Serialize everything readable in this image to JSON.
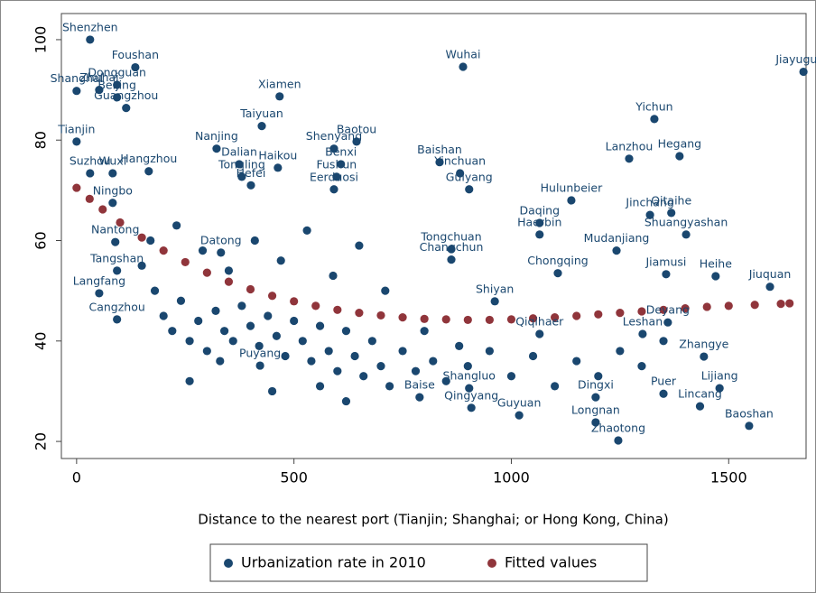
{
  "chart_data": {
    "type": "scatter",
    "x_label": "Distance to the nearest port (Tianjin; Shanghai; or Hong Kong, China)",
    "xlim": [
      -35,
      1678
    ],
    "ylim": [
      16.6,
      105.2
    ],
    "xticks": [
      0,
      500,
      1000,
      1500
    ],
    "yticks": [
      20,
      40,
      60,
      80,
      100
    ],
    "grid": false,
    "legend": "bottom",
    "series": [
      {
        "name": "Urbanization rate in 2010",
        "color": "#1a476f",
        "style": "points",
        "x": [
          31,
          135,
          0,
          93,
          52,
          93,
          114,
          0,
          467,
          426,
          322,
          166,
          374,
          380,
          463,
          644,
          592,
          608,
          598,
          592,
          889,
          835,
          882,
          903,
          1672,
          1329,
          1271,
          1387,
          1138,
          1368,
          1402,
          1065,
          1065,
          1242,
          862,
          862,
          1107,
          1356,
          1470,
          1595,
          962,
          93,
          52,
          93,
          89,
          31,
          83,
          83,
          332,
          401,
          422,
          789,
          903,
          908,
          1018,
          1194,
          1194,
          1246,
          1479,
          1434,
          1547,
          1350,
          1360,
          1302,
          1443,
          1065,
          1319,
          180,
          200,
          220,
          240,
          260,
          280,
          300,
          320,
          340,
          360,
          380,
          400,
          420,
          440,
          460,
          480,
          500,
          520,
          540,
          560,
          580,
          600,
          620,
          640,
          660,
          680,
          700,
          720,
          750,
          780,
          800,
          820,
          850,
          880,
          900,
          950,
          1000,
          1050,
          1100,
          1150,
          1200,
          1250,
          1300,
          1350,
          150,
          170,
          230,
          290,
          350,
          410,
          470,
          530,
          590,
          650,
          710,
          260,
          330,
          450,
          560,
          620
        ],
        "values": [
          100,
          94.5,
          89.8,
          91,
          90,
          88.5,
          86.4,
          79.7,
          88.7,
          82.8,
          78.3,
          73.8,
          75.2,
          72.7,
          74.5,
          79.7,
          78.3,
          75.2,
          72.7,
          70.2,
          94.6,
          75.6,
          73.4,
          70.2,
          93.6,
          84.2,
          76.3,
          76.8,
          68,
          65.5,
          61.2,
          63.5,
          61.2,
          58,
          58.3,
          56.2,
          53.5,
          53.3,
          52.9,
          50.8,
          47.9,
          44.3,
          49.5,
          54,
          59.7,
          73.4,
          73.4,
          67.5,
          57.6,
          71,
          35.1,
          28.8,
          30.6,
          26.7,
          25.2,
          28.8,
          23.8,
          20.2,
          30.6,
          27,
          23.1,
          29.5,
          43.7,
          41.4,
          36.9,
          41.4,
          65.1,
          50,
          45,
          42,
          48,
          40,
          44,
          38,
          46,
          42,
          40,
          47,
          43,
          39,
          45,
          41,
          37,
          44,
          40,
          36,
          43,
          38,
          34,
          42,
          37,
          33,
          40,
          35,
          31,
          38,
          34,
          42,
          36,
          32,
          39,
          35,
          38,
          33,
          37,
          31,
          36,
          33,
          38,
          35,
          40,
          55,
          60,
          63,
          58,
          54,
          60,
          56,
          62,
          53,
          59,
          50,
          32,
          36,
          30,
          31,
          28
        ],
        "labels": [
          "Shenzhen",
          "Foushan",
          "Shanghai",
          "Dongguan",
          "Zhuhai",
          "Beijing",
          "Guangzhou",
          "Tianjin",
          "Xiamen",
          "Taiyuan",
          "Nanjing",
          "Hangzhou",
          "Dalian",
          "Tongling",
          "Haikou",
          "Baotou",
          "Shenyang",
          "Benxi",
          "Fushun",
          "Eerduosi",
          "Wuhai",
          "Baishan",
          "Yinchuan",
          "Guiyang",
          "Jiayuguan",
          "Yichun",
          "Lanzhou",
          "Hegang",
          "Hulunbeier",
          "Qitaihe",
          "Shuangyashan",
          "Daqing",
          "Haerbin",
          "Mudanjiang",
          "Tongchuan",
          "Changchun",
          "Chongqing",
          "Jiamusi",
          "Heihe",
          "Jiuquan",
          "Shiyan",
          "Cangzhou",
          "Langfang",
          "Tangshan",
          "Nantong",
          "Suzhou",
          "Wuxi",
          "Ningbo",
          "Datong",
          "Hefei",
          "Puyang",
          "Baise",
          "Shangluo",
          "Qingyang",
          "Guyuan",
          "Dingxi",
          "Longnan",
          "Zhaotong",
          "Lijiang",
          "Lincang",
          "Baoshan",
          "Puer",
          "Deyang",
          "Leshan",
          "Zhangye",
          "Qiqihaer",
          "Jinchang",
          null,
          null,
          null,
          null,
          null,
          null,
          null,
          null,
          null,
          null,
          null,
          null,
          null,
          null,
          null,
          null,
          null,
          null,
          null,
          null,
          null,
          null,
          null,
          null,
          null,
          null,
          null,
          null,
          null,
          null,
          null,
          null,
          null,
          null,
          null,
          null,
          null,
          null,
          null,
          null,
          null,
          null,
          null,
          null,
          null,
          null,
          null,
          null,
          null,
          null,
          null,
          null,
          null,
          null,
          null,
          null,
          null,
          null,
          null,
          null
        ]
      },
      {
        "name": "Fitted values",
        "color": "#90353b",
        "style": "points",
        "x": [
          0,
          30,
          60,
          100,
          150,
          200,
          250,
          300,
          350,
          400,
          450,
          500,
          550,
          600,
          650,
          700,
          750,
          800,
          850,
          900,
          950,
          1000,
          1050,
          1100,
          1150,
          1200,
          1250,
          1300,
          1350,
          1400,
          1450,
          1500,
          1560,
          1620,
          1640
        ],
        "values": [
          70.5,
          68.3,
          66.2,
          63.6,
          60.6,
          58,
          55.7,
          53.6,
          51.8,
          50.3,
          49,
          47.9,
          47,
          46.2,
          45.6,
          45.1,
          44.7,
          44.4,
          44.3,
          44.2,
          44.2,
          44.3,
          44.5,
          44.7,
          45,
          45.3,
          45.6,
          45.9,
          46.2,
          46.5,
          46.8,
          47,
          47.2,
          47.4,
          47.5
        ]
      }
    ]
  }
}
